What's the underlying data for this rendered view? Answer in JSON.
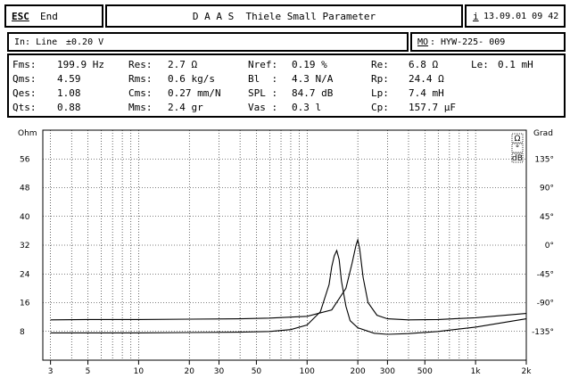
{
  "menu": {
    "esc_prefix": "ESC",
    "esc_label": "End"
  },
  "title": "D A A S  Thiele Small Parameter",
  "datetime_prefix": "i",
  "datetime": "13.09.01 09 42",
  "input": {
    "label": "In: Line",
    "level": "±0.20 V"
  },
  "model": {
    "prefix": "MO",
    "label": ": HYW-225- 009"
  },
  "params": [
    [
      {
        "name": "Fms:",
        "value": "199.9 Hz"
      },
      {
        "name": "Res:",
        "value": "2.7 Ω"
      },
      {
        "name": "Nref:",
        "value": "0.19 %"
      },
      {
        "name": "Re:",
        "value": "6.8 Ω"
      },
      {
        "name": "Le:",
        "value": "0.1 mH"
      }
    ],
    [
      {
        "name": "Qms:",
        "value": "4.59"
      },
      {
        "name": "Rms:",
        "value": "0.6 kg/s"
      },
      {
        "name": "Bl  :",
        "value": "4.3 N/A"
      },
      {
        "name": "Rp:",
        "value": "24.4 Ω"
      }
    ],
    [
      {
        "name": "Qes:",
        "value": "1.08"
      },
      {
        "name": "Cms:",
        "value": "0.27 mm/N"
      },
      {
        "name": "SPL :",
        "value": "84.7 dB"
      },
      {
        "name": "Lp:",
        "value": "7.4 mH"
      }
    ],
    [
      {
        "name": "Qts:",
        "value": "0.88"
      },
      {
        "name": "Mms:",
        "value": "2.4 gr"
      },
      {
        "name": "Vas :",
        "value": "0.3 l"
      },
      {
        "name": "Cp:",
        "value": "157.7 µF"
      }
    ]
  ],
  "chart_data": {
    "type": "line",
    "y_left_label": "Ohm",
    "y_right_label": "Grad",
    "y_left_ticks": [
      "56",
      "48",
      "40",
      "32",
      "24",
      "16",
      "8"
    ],
    "y_right_ticks": [
      "135°",
      "90°",
      "45°",
      "0°",
      "-45°",
      "-90°",
      "-135°"
    ],
    "x_ticks": [
      {
        "label": "3",
        "value": 3
      },
      {
        "label": "5",
        "value": 5
      },
      {
        "label": "10",
        "value": 10
      },
      {
        "label": "20",
        "value": 20
      },
      {
        "label": "30",
        "value": 30
      },
      {
        "label": "50",
        "value": 50
      },
      {
        "label": "100",
        "value": 100
      },
      {
        "label": "200",
        "value": 200
      },
      {
        "label": "300",
        "value": 300
      },
      {
        "label": "500",
        "value": 500
      },
      {
        "label": "1k",
        "value": 1000
      },
      {
        "label": "2k",
        "value": 2000
      }
    ],
    "xlim": [
      2.7,
      2000
    ],
    "ylim": [
      0,
      64
    ],
    "y_right_lim": [
      -180,
      180
    ],
    "x_scale": "log",
    "grid": true,
    "side_buttons": [
      "Ω",
      "°",
      "dB"
    ],
    "series": [
      {
        "x": [
          3,
          5,
          10,
          20,
          40,
          60,
          80,
          100,
          120,
          135,
          140,
          145,
          150,
          155,
          160,
          170,
          180,
          200,
          250,
          300,
          400,
          600,
          1000,
          2000
        ],
        "y": [
          7.6,
          7.6,
          7.6,
          7.7,
          7.8,
          8.0,
          8.5,
          9.8,
          13.5,
          21,
          26,
          29,
          30.5,
          28,
          22,
          15,
          11,
          9,
          7.5,
          7.2,
          7.4,
          8,
          9.2,
          11.5
        ]
      },
      {
        "x": [
          3,
          5,
          10,
          20,
          40,
          60,
          100,
          140,
          170,
          185,
          195,
          200,
          205,
          215,
          230,
          260,
          300,
          400,
          600,
          1000,
          2000
        ],
        "y": [
          11.2,
          11.3,
          11.3,
          11.4,
          11.5,
          11.7,
          12.2,
          14,
          20,
          27,
          32,
          33.5,
          31,
          23,
          16,
          12.5,
          11.5,
          11.2,
          11.3,
          11.8,
          13
        ]
      }
    ]
  }
}
